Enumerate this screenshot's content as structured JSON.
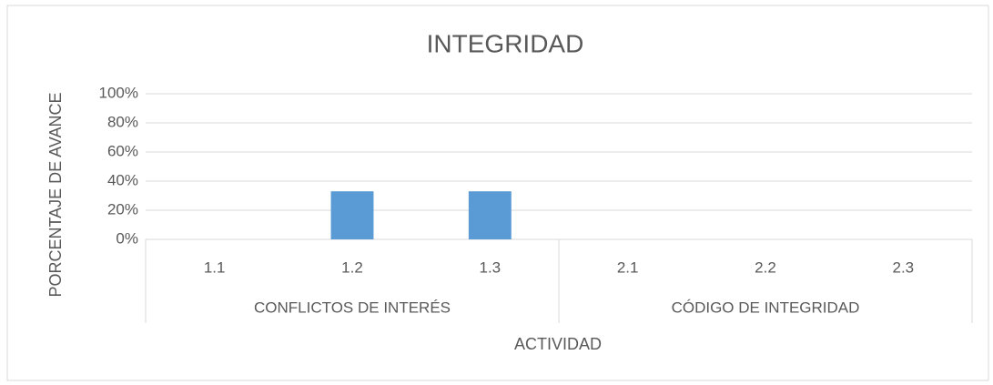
{
  "chart_data": {
    "type": "bar",
    "title": "INTEGRIDAD",
    "x_label": "ACTIVIDAD",
    "y_label": "PORCENTAJE DE AVANCE",
    "groups": [
      {
        "name": "CONFLICTOS DE INTERÉS",
        "categories": [
          "1.1",
          "1.2",
          "1.3"
        ],
        "values": [
          0,
          33,
          33
        ]
      },
      {
        "name": "CÓDIGO DE INTEGRIDAD",
        "categories": [
          "2.1",
          "2.2",
          "2.3"
        ],
        "values": [
          0,
          0,
          0
        ]
      }
    ],
    "color": "#5b9bd5",
    "ylim": [
      0,
      100
    ],
    "yticks": [
      {
        "value": 0,
        "label": "0%"
      },
      {
        "value": 20,
        "label": "20%"
      },
      {
        "value": 40,
        "label": "40%"
      },
      {
        "value": 60,
        "label": "60%"
      },
      {
        "value": 80,
        "label": "80%"
      },
      {
        "value": 100,
        "label": "100%"
      }
    ],
    "grid": true
  }
}
